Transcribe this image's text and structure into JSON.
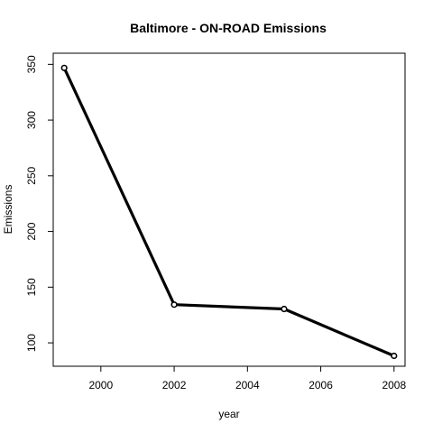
{
  "chart_data": {
    "type": "line",
    "title": "Baltimore - ON-ROAD Emissions",
    "xlabel": "year",
    "ylabel": "Emissions",
    "xlim": [
      1998.7,
      2008.3
    ],
    "ylim": [
      79,
      360
    ],
    "x_ticks": [
      2000,
      2002,
      2004,
      2006,
      2008
    ],
    "y_ticks": [
      100,
      150,
      200,
      250,
      300,
      350
    ],
    "grid": false,
    "legend": "none",
    "line_color": "#000000",
    "series": [
      {
        "x": [
          1999,
          2002,
          2005,
          2008
        ],
        "values": [
          346.8,
          134.3,
          130.4,
          88.3
        ]
      }
    ]
  }
}
